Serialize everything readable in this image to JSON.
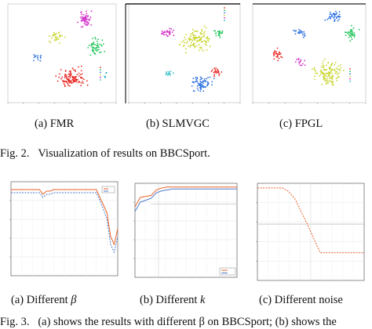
{
  "figure2": {
    "caption_prefix": "Fig. 2.",
    "caption_text": "Visualization of results on BBCSport.",
    "panels": [
      {
        "id": "a",
        "label": "(a) FMR"
      },
      {
        "id": "b",
        "label": "(b) SLMVGC"
      },
      {
        "id": "c",
        "label": "(c) FPGL"
      }
    ]
  },
  "figure3": {
    "caption_prefix": "Fig. 3.",
    "caption_text": "(a) shows the results with different β on BBCSport; (b) shows the",
    "panels": [
      {
        "id": "a",
        "label_prefix": "(a) Different ",
        "label_var": "β"
      },
      {
        "id": "b",
        "label_prefix": "(b) Different ",
        "label_var": "k"
      },
      {
        "id": "c",
        "label_prefix": "(c) Different noise",
        "label_var": ""
      }
    ]
  },
  "colors": {
    "cluster_red": "#e8231e",
    "cluster_green": "#20c45a",
    "cluster_blue": "#2a6ee0",
    "cluster_yellow": "#c8d42a",
    "cluster_magenta": "#d028c8",
    "cluster_cyan": "#24b8c8",
    "line_orange": "#e8622a",
    "line_blue": "#4a7ac8"
  },
  "chart_data": [
    {
      "type": "line",
      "title": "",
      "series": [
        {
          "values": [
            0.95,
            0.95,
            0.95,
            0.95,
            0.95,
            0.95,
            0.95,
            0.95,
            0.95,
            0.92,
            0.94,
            0.94,
            0.95,
            0.95,
            0.95,
            0.95,
            0.95,
            0.95,
            0.95,
            0.95,
            0.95,
            0.95,
            0.95,
            0.95,
            0.95,
            0.9,
            0.85,
            0.8,
            0.65,
            0.6,
            0.7
          ]
        },
        {
          "values": [
            0.93,
            0.93,
            0.93,
            0.93,
            0.93,
            0.93,
            0.93,
            0.93,
            0.93,
            0.9,
            0.92,
            0.92,
            0.93,
            0.93,
            0.93,
            0.93,
            0.93,
            0.93,
            0.93,
            0.93,
            0.93,
            0.93,
            0.93,
            0.93,
            0.93,
            0.88,
            0.82,
            0.76,
            0.6,
            0.55,
            0.65
          ]
        }
      ]
    },
    {
      "type": "line",
      "title": "",
      "series": [
        {
          "values": [
            0.75,
            0.85,
            0.86,
            0.87,
            0.93,
            0.95,
            0.96,
            0.96,
            0.96,
            0.96,
            0.96,
            0.96,
            0.96,
            0.96,
            0.96,
            0.96,
            0.96,
            0.96,
            0.96,
            0.96
          ]
        },
        {
          "values": [
            0.7,
            0.8,
            0.82,
            0.84,
            0.9,
            0.92,
            0.93,
            0.94,
            0.94,
            0.94,
            0.94,
            0.94,
            0.94,
            0.94,
            0.94,
            0.94,
            0.94,
            0.94,
            0.94,
            0.94
          ]
        }
      ]
    },
    {
      "type": "line",
      "title": "",
      "series": [
        {
          "values": [
            1.0,
            1.0,
            1.0,
            1.0,
            1.0,
            0.96,
            0.88,
            0.74,
            0.6,
            0.45,
            0.3,
            0.3,
            0.3,
            0.3,
            0.3,
            0.3,
            0.3,
            0.3
          ]
        }
      ]
    }
  ]
}
